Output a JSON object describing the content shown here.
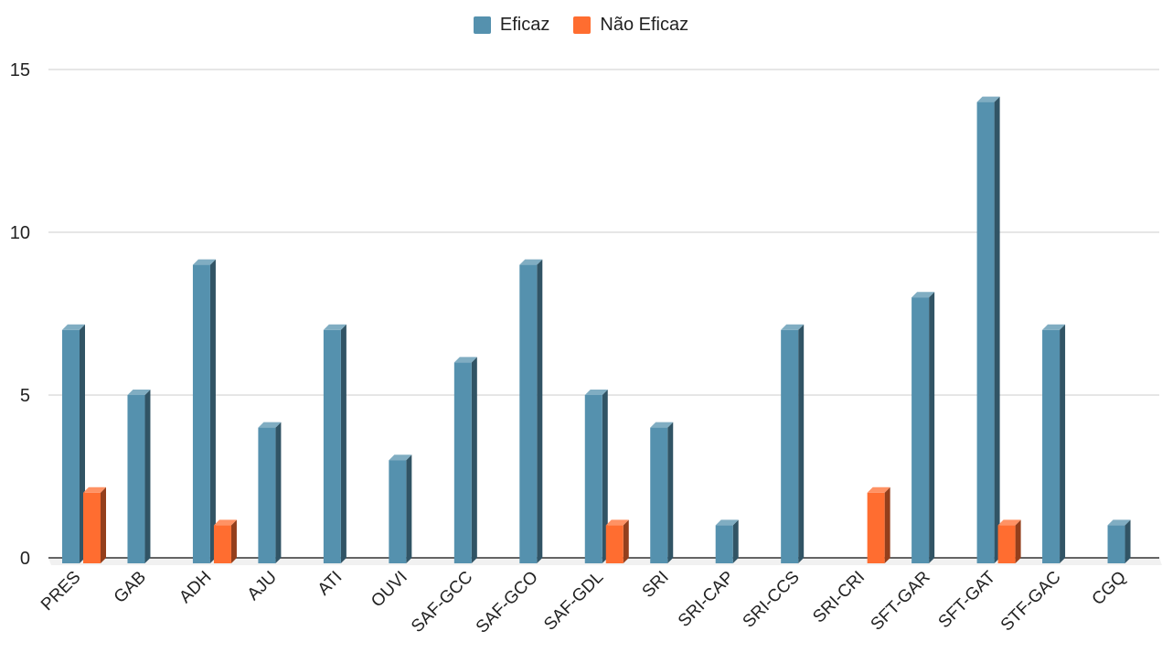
{
  "chart_data": {
    "type": "bar",
    "categories": [
      "PRES",
      "GAB",
      "ADH",
      "AJU",
      "ATI",
      "OUVI",
      "SAF-GCC",
      "SAF-GCO",
      "SAF-GDL",
      "SRI",
      "SRI-CAP",
      "SRI-CCS",
      "SRI-CRI",
      "SFT-GAR",
      "SFT-GAT",
      "STF-GAC",
      "CGQ"
    ],
    "series": [
      {
        "name": "Eficaz",
        "color": "#5591ae",
        "values": [
          7,
          5,
          9,
          4,
          7,
          3,
          6,
          9,
          5,
          4,
          1,
          7,
          0,
          8,
          14,
          7,
          1
        ]
      },
      {
        "name": "Não Eficaz",
        "color": "#ff6d30",
        "values": [
          2,
          0,
          1,
          0,
          0,
          0,
          0,
          0,
          1,
          0,
          0,
          0,
          2,
          0,
          1,
          0,
          0
        ]
      }
    ],
    "y_ticks": [
      0,
      5,
      10,
      15
    ],
    "ylim": [
      0,
      15
    ],
    "grid": true,
    "legend_position": "top-center",
    "title": "",
    "xlabel": "",
    "ylabel": ""
  }
}
